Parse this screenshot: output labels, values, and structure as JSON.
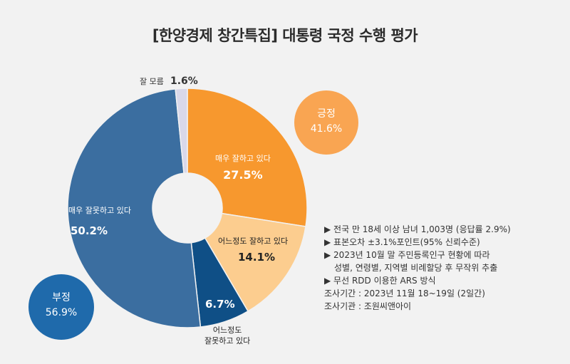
{
  "title": "[한양경제 창간특집] 대통령 국정 수행 평가",
  "colors": {
    "strong_positive": "#f7982e",
    "somewhat_positive": "#fccd8f",
    "somewhat_negative": "#0f4f86",
    "strong_negative": "#3b6ea0",
    "dont_know": "#d9d8ea",
    "positive_badge": "#f9a552",
    "negative_badge": "#1f6aab"
  },
  "labels": {
    "strong_positive": {
      "name": "매우 잘하고 있다",
      "value": "27.5%"
    },
    "somewhat_positive": {
      "name": "어느정도 잘하고 있다",
      "value": "14.1%"
    },
    "somewhat_negative": {
      "name_line1": "어느정도",
      "name_line2": "잘못하고 있다",
      "value": "6.7%"
    },
    "strong_negative": {
      "name": "매우 잘못하고 있다",
      "value": "50.2%"
    },
    "dont_know": {
      "name": "잘 모름",
      "value": "1.6%"
    }
  },
  "badges": {
    "positive": {
      "name": "긍정",
      "value": "41.6%"
    },
    "negative": {
      "name": "부정",
      "value": "56.9%"
    }
  },
  "notes": [
    "▶ 전국 만 18세 이상 남녀 1,003명 (응답률 2.9%)",
    "▶ 표본오차 ±3.1%포인트(95% 신뢰수준)",
    "▶ 2023년 10월 말 주민등록인구 현황에 따라",
    "성별, 연령별, 지역별 비례할당 후 무작위 추출",
    "▶ 무선 RDD 이용한 ARS 방식",
    "조사기간 : 2023년 11월 18~19일 (2일간)",
    "조사기관 : 조원씨앤아이"
  ],
  "chart_data": {
    "type": "pie",
    "title": "[한양경제 창간특집] 대통령 국정 수행 평가",
    "categories": [
      "매우 잘하고 있다",
      "어느정도 잘하고 있다",
      "어느정도 잘못하고 있다",
      "매우 잘못하고 있다",
      "잘 모름"
    ],
    "values": [
      27.5,
      14.1,
      6.7,
      50.2,
      1.6
    ],
    "groups": [
      {
        "name": "긍정",
        "value": 41.6
      },
      {
        "name": "부정",
        "value": 56.9
      }
    ]
  }
}
